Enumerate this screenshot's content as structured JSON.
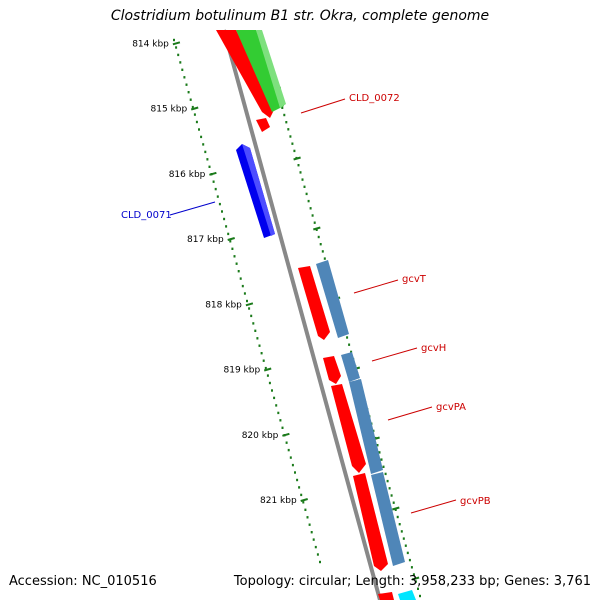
{
  "title": "Clostridium botulinum B1 str. Okra, complete genome",
  "footer": {
    "accession": "Accession: NC_010516",
    "topology": "Topology: circular; Length: 3,958,233 bp; Genes: 3,761"
  },
  "colors": {
    "backbone": "#888888",
    "tick": "#1a7a1a",
    "forward_gene": "#ff0000",
    "reverse_gene": "#0000ee",
    "cds_feature": "#4f86b8",
    "other_feature": "#33cc33",
    "cyan_feature": "#00e5ff",
    "label_red": "#cc0000",
    "label_blue": "#0000cc"
  },
  "ticks": [
    {
      "label": "814 kbp",
      "kbp": 814
    },
    {
      "label": "815 kbp",
      "kbp": 815
    },
    {
      "label": "816 kbp",
      "kbp": 816
    },
    {
      "label": "817 kbp",
      "kbp": 817
    },
    {
      "label": "818 kbp",
      "kbp": 818
    },
    {
      "label": "819 kbp",
      "kbp": 819
    },
    {
      "label": "820 kbp",
      "kbp": 820
    },
    {
      "label": "821 kbp",
      "kbp": 821
    }
  ],
  "gene_labels": [
    {
      "text": "CLD_0072",
      "color": "#cc0000"
    },
    {
      "text": "CLD_0071",
      "color": "#0000cc"
    },
    {
      "text": "gcvT",
      "color": "#cc0000"
    },
    {
      "text": "gcvH",
      "color": "#cc0000"
    },
    {
      "text": "gcvPA",
      "color": "#cc0000"
    },
    {
      "text": "gcvPB",
      "color": "#cc0000"
    }
  ]
}
